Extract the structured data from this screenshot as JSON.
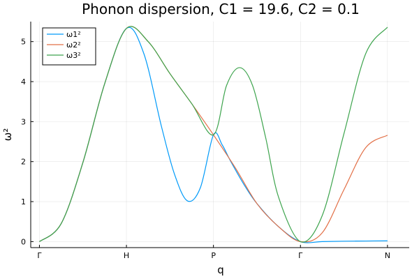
{
  "chart_data": {
    "type": "line",
    "title": "Phonon dispersion, C1 = 19.6, C2 = 0.1",
    "xlabel": "q",
    "ylabel": "ω²",
    "x_ticks": [
      "Γ",
      "H",
      "P",
      "Γ",
      "N"
    ],
    "y_ticks": [
      0,
      1,
      2,
      3,
      4,
      5
    ],
    "xlim": [
      -0.1,
      4.25
    ],
    "ylim": [
      -0.15,
      5.5
    ],
    "grid": true,
    "legend_position": "top-left",
    "series": [
      {
        "name": "ω1²",
        "color": "#009af9",
        "x": [
          0,
          0.25,
          0.5,
          0.75,
          1,
          1.2,
          1.4,
          1.55,
          1.7,
          1.85,
          2,
          2.1,
          2.2,
          2.35,
          2.5,
          2.75,
          3,
          3.25,
          3.5,
          3.75,
          4
        ],
        "y": [
          0,
          0.45,
          1.98,
          3.95,
          5.33,
          4.7,
          2.9,
          1.7,
          1.02,
          1.35,
          2.67,
          2.42,
          2.0,
          1.43,
          0.95,
          0.37,
          0.0,
          0.0,
          0.01,
          0.015,
          0.02
        ]
      },
      {
        "name": "ω2²",
        "color": "#e26f46",
        "x": [
          0,
          0.25,
          0.5,
          0.75,
          1,
          1.25,
          1.5,
          1.75,
          2,
          2.25,
          2.5,
          2.75,
          3,
          3.25,
          3.5,
          3.75,
          4
        ],
        "y": [
          0,
          0.45,
          1.98,
          3.95,
          5.33,
          5.0,
          4.2,
          3.45,
          2.67,
          1.85,
          0.95,
          0.37,
          0.0,
          0.22,
          1.3,
          2.35,
          2.66
        ]
      },
      {
        "name": "ω3²",
        "color": "#3da44d",
        "x": [
          0,
          0.25,
          0.5,
          0.75,
          1,
          1.25,
          1.5,
          1.75,
          2,
          2.15,
          2.3,
          2.45,
          2.6,
          2.75,
          3,
          3.25,
          3.5,
          3.75,
          4
        ],
        "y": [
          0,
          0.45,
          1.98,
          3.95,
          5.33,
          5.0,
          4.2,
          3.45,
          2.67,
          3.9,
          4.35,
          3.9,
          2.6,
          1.1,
          0.0,
          0.65,
          2.7,
          4.7,
          5.36
        ]
      }
    ]
  }
}
